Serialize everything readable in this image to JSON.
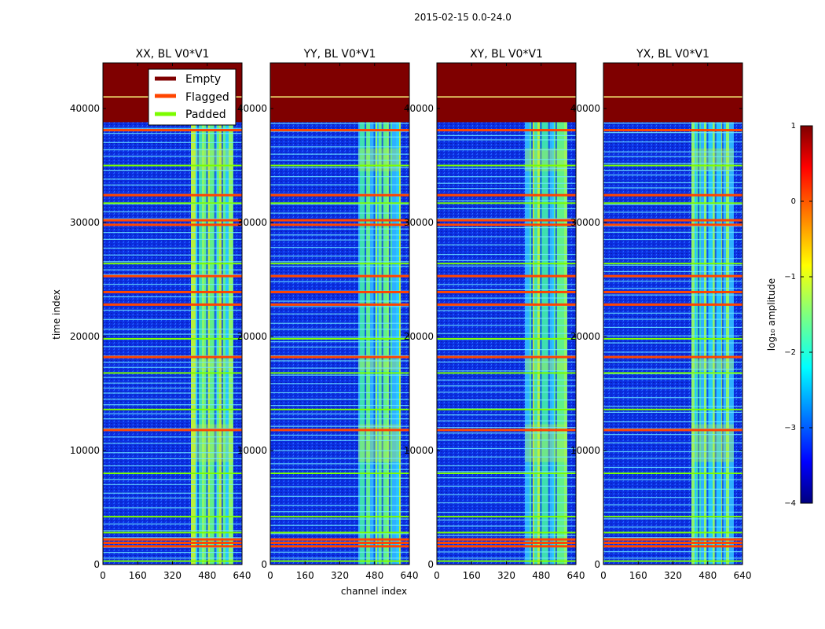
{
  "chart_data": {
    "type": "heatmap",
    "suptitle": "2015-02-15 0.0-24.0",
    "xlabel": "channel index",
    "ylabel": "time index",
    "xlim": [
      0,
      640
    ],
    "ylim": [
      0,
      44000
    ],
    "x_ticks": [
      "0",
      "160",
      "320",
      "480",
      "640"
    ],
    "y_ticks": [
      "0",
      "10000",
      "20000",
      "30000",
      "40000"
    ],
    "x_tick_values": [
      0,
      160,
      320,
      480,
      640
    ],
    "y_tick_values": [
      0,
      10000,
      20000,
      30000,
      40000
    ],
    "panels": [
      {
        "title": "XX, BL V0*V1",
        "pol": "XX"
      },
      {
        "title": "YY, BL V0*V1",
        "pol": "YY"
      },
      {
        "title": "XY, BL V0*V1",
        "pol": "XY"
      },
      {
        "title": "YX, BL V0*V1",
        "pol": "YX"
      }
    ],
    "empty_from_time": 38800,
    "active_channel_range": [
      405,
      600
    ],
    "flagged_time_rows": [
      1600,
      1900,
      2200,
      11800,
      18200,
      22800,
      23900,
      25300,
      29800,
      30200,
      32400,
      38100
    ],
    "padded_time_rows": [
      300,
      2800,
      4200,
      8000,
      13600,
      16800,
      19800,
      26400,
      31700,
      35000,
      41000
    ],
    "legend": {
      "placement": "top-left of first panel",
      "entries": [
        {
          "label": "Empty",
          "color": "#7f0000"
        },
        {
          "label": "Flagged",
          "color": "#ff4500"
        },
        {
          "label": "Padded",
          "color": "#7cfc00"
        }
      ]
    },
    "colorbar": {
      "label": "log₁₀ amplitude",
      "range": [
        -4,
        1
      ],
      "ticks": [
        "1",
        "0",
        "−1",
        "−2",
        "−3",
        "−4"
      ],
      "tick_values": [
        1,
        0,
        -1,
        -2,
        -3,
        -4
      ],
      "colormap": "jet"
    }
  },
  "colors": {
    "empty": "#7f0000",
    "background_low": "#0a2adb",
    "flagged": "#ff4500",
    "padded": "#7cfc00"
  }
}
